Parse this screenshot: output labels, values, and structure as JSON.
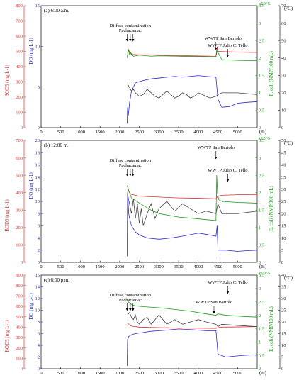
{
  "chart_data": [
    {
      "type": "line",
      "panel_label": "(a) 6:00 a.m.",
      "xlabel": "(m)",
      "x_range": [
        0,
        5500
      ],
      "x_ticks": [
        0,
        500,
        1000,
        1500,
        2000,
        2500,
        3000,
        3500,
        4000,
        4500,
        5000
      ],
      "axes": {
        "bod": {
          "label": "BOD5 (mg L-1)",
          "color": "#e03030",
          "range": [
            0,
            800
          ],
          "ticks": [
            0,
            100,
            200,
            300,
            400,
            500,
            600,
            700,
            800
          ]
        },
        "do": {
          "label": "DO (mg L-1)",
          "color": "#2b2bd0",
          "range": [
            0,
            15
          ],
          "ticks": [
            0,
            5,
            10,
            15
          ]
        },
        "ecoli": {
          "label": "E. coli (NMP/100 mL)",
          "color": "#1a9a1a",
          "range": [
            0,
            3.5
          ],
          "ticks": [
            0,
            0.5,
            1,
            1.5,
            2,
            2.5,
            3,
            3.5
          ],
          "multiplier": "x10^5"
        },
        "temp": {
          "label": "(°C)",
          "color": "#222222",
          "range": [
            0,
            70
          ],
          "ticks": [
            0,
            10,
            20,
            30,
            40,
            50,
            60,
            70
          ]
        }
      },
      "annotations": [
        {
          "text": "Diffuse contamination",
          "x": 2270
        },
        {
          "text": "Pachacamac",
          "x": 2270
        },
        {
          "text": "WWTP San Bartolo",
          "x": 4450
        },
        {
          "text": "WWTP Julio C. Tello",
          "x": 4750
        }
      ],
      "arrows_x": [
        2190,
        2270,
        2340,
        4450,
        4750
      ],
      "series": [
        {
          "axis": "bod",
          "color": "#e03030",
          "x": [
            2200,
            2230,
            2260,
            2300,
            2500,
            3000,
            3500,
            4000,
            4450,
            4480,
            4500,
            5000,
            5500
          ],
          "y": [
            490,
            510,
            490,
            480,
            478,
            475,
            473,
            470,
            468,
            530,
            500,
            495,
            493
          ]
        },
        {
          "axis": "do",
          "color": "#2b2bd0",
          "x": [
            2190,
            2200,
            2220,
            2250,
            2300,
            2400,
            2600,
            2800,
            3000,
            3200,
            3400,
            3600,
            3800,
            4000,
            4200,
            4450,
            4500,
            4600,
            4800,
            5000,
            5200,
            5500
          ],
          "y": [
            0.5,
            2.5,
            1.5,
            3,
            4.5,
            5.5,
            5.8,
            6,
            6.1,
            6.2,
            6.3,
            6.2,
            6.3,
            6.4,
            6.3,
            6.2,
            3.5,
            2.5,
            2.6,
            3,
            3.1,
            3.2
          ]
        },
        {
          "axis": "ecoli",
          "color": "#1a9a1a",
          "x": [
            2190,
            2220,
            2250,
            2280,
            2350,
            2500,
            2800,
            3000,
            3500,
            4000,
            4450,
            4480,
            4600,
            5000,
            5500
          ],
          "y": [
            2.0,
            2.25,
            2.1,
            2.15,
            2.05,
            2.08,
            2.05,
            2.06,
            2.05,
            2.04,
            2.03,
            2.2,
            1.95,
            1.93,
            1.92
          ]
        },
        {
          "axis": "temp",
          "color": "#444444",
          "x": [
            2200,
            2250,
            2300,
            2350,
            2400,
            2500,
            2600,
            2700,
            2800,
            2900,
            3000,
            3100,
            3200,
            3300,
            3400,
            3500,
            3600,
            3700,
            3800,
            3900,
            4000,
            4100,
            4200,
            4300,
            4450,
            4500,
            4600,
            5000,
            5500
          ],
          "y": [
            25,
            23,
            21,
            22,
            20,
            18,
            19,
            22,
            20,
            18,
            17,
            19,
            21,
            19,
            17,
            18,
            20,
            19,
            17,
            18,
            20,
            19,
            18,
            17,
            18,
            19,
            20,
            20,
            19
          ]
        }
      ]
    },
    {
      "type": "line",
      "panel_label": "(b) 12:00 m.",
      "xlabel": "(m)",
      "x_range": [
        0,
        5500
      ],
      "x_ticks": [
        0,
        500,
        1000,
        1500,
        2000,
        2500,
        3000,
        3500,
        4000,
        4500,
        5000
      ],
      "axes": {
        "bod": {
          "label": "BOD5 (mg L-1)",
          "color": "#e03030",
          "range": [
            0,
            700
          ],
          "ticks": [
            0,
            100,
            200,
            300,
            400,
            500,
            600,
            700
          ]
        },
        "do": {
          "label": "DO (mg L-1)",
          "color": "#2b2bd0",
          "range": [
            0,
            20
          ],
          "ticks": [
            0,
            2,
            4,
            6,
            8,
            10,
            12,
            14,
            16,
            18,
            20
          ]
        },
        "ecoli": {
          "label": "E. coli (NMP/100 mL)",
          "color": "#1a9a1a",
          "range": [
            0,
            3.5
          ],
          "ticks": [
            0,
            0.5,
            1,
            1.5,
            2,
            2.5,
            3,
            3.5
          ],
          "multiplier": "x10^5"
        },
        "temp": {
          "label": "(°C)",
          "color": "#222222",
          "range": [
            0,
            50
          ],
          "ticks": [
            0,
            5,
            10,
            15,
            20,
            25,
            30,
            35,
            40,
            45,
            50
          ]
        }
      },
      "annotations": [
        {
          "text": "Diffuse contamination",
          "x": 2270
        },
        {
          "text": "Pachacamac",
          "x": 2270
        },
        {
          "text": "WWTP San Bartolo",
          "x": 4450
        },
        {
          "text": "WWTP Julio C. Tello",
          "x": 4750
        }
      ],
      "arrows_x": [
        2190,
        2270,
        2340,
        4450,
        4750
      ],
      "series": [
        {
          "axis": "bod",
          "color": "#e03030",
          "x": [
            2200,
            2250,
            2300,
            2500,
            3000,
            3500,
            4000,
            4450,
            4500,
            4600,
            5000,
            5500
          ],
          "y": [
            420,
            400,
            390,
            380,
            375,
            370,
            368,
            365,
            380,
            385,
            388,
            390
          ]
        },
        {
          "axis": "do",
          "color": "#2b2bd0",
          "x": [
            2190,
            2200,
            2230,
            2260,
            2300,
            2400,
            2500,
            2700,
            3000,
            3300,
            3600,
            4000,
            4200,
            4450,
            4480,
            4500,
            4700,
            5000,
            5200,
            5500
          ],
          "y": [
            1,
            11.5,
            8,
            7,
            6,
            5,
            4.5,
            4,
            3.8,
            4,
            4.3,
            4.8,
            4.6,
            4.3,
            6,
            2,
            2,
            1.8,
            1.9,
            2
          ]
        },
        {
          "axis": "ecoli",
          "color": "#1a9a1a",
          "x": [
            2190,
            2220,
            2250,
            2300,
            2500,
            2800,
            3000,
            3500,
            4000,
            4450,
            4470,
            4490,
            4520,
            4600,
            5000,
            5500
          ],
          "y": [
            2.2,
            2.1,
            2.0,
            1.85,
            1.7,
            1.5,
            1.4,
            1.3,
            1.25,
            1.2,
            2.5,
            2.0,
            1.8,
            1.75,
            1.72,
            1.7
          ]
        },
        {
          "axis": "temp",
          "color": "#444444",
          "x": [
            2200,
            2250,
            2300,
            2350,
            2400,
            2450,
            2500,
            2550,
            2600,
            2700,
            2800,
            2900,
            3000,
            3200,
            3400,
            3600,
            3800,
            4000,
            4200,
            4450,
            4500,
            4600,
            5000,
            5500
          ],
          "y": [
            28,
            24,
            20,
            26,
            18,
            24,
            16,
            22,
            15,
            20,
            24,
            18,
            22,
            25,
            21,
            24,
            22,
            20,
            21,
            20,
            24,
            20,
            20,
            21
          ]
        }
      ]
    },
    {
      "type": "line",
      "panel_label": "(c) 6:00 p.m.",
      "xlabel": "(m)",
      "x_range": [
        0,
        5500
      ],
      "x_ticks": [
        0,
        500,
        1000,
        1500,
        2000,
        2500,
        3000,
        3500,
        4000,
        4500,
        5000
      ],
      "axes": {
        "bod": {
          "label": "BOD5 (mg L-1)",
          "color": "#e03030",
          "range": [
            0,
            900
          ],
          "ticks": [
            0,
            100,
            200,
            300,
            400,
            500,
            600,
            700,
            800,
            900
          ]
        },
        "do": {
          "label": "DO (mg L-1)",
          "color": "#2b2bd0",
          "range": [
            0,
            16
          ],
          "ticks": [
            0,
            2,
            4,
            6,
            8,
            10,
            12,
            14,
            16
          ]
        },
        "ecoli": {
          "label": "E. coli (NMP/100 mL)",
          "color": "#1a9a1a",
          "range": [
            0,
            3.5
          ],
          "ticks": [
            0,
            0.5,
            1,
            1.5,
            2,
            2.5,
            3,
            3.5
          ],
          "multiplier": "x10^5"
        },
        "temp": {
          "label": "(°C)",
          "color": "#222222",
          "range": [
            0,
            40
          ],
          "ticks": [
            0,
            5,
            10,
            15,
            20,
            25,
            30,
            35,
            40
          ]
        }
      },
      "annotations": [
        {
          "text": "Diffuse contamination",
          "x": 2270
        },
        {
          "text": "Pachacamac",
          "x": 2270
        },
        {
          "text": "WWTP Julio C. Tello",
          "x": 4750
        },
        {
          "text": "WWTP San Bartolo",
          "x": 4400
        }
      ],
      "arrows_x": [
        2190,
        2270,
        2340,
        4400,
        4750
      ],
      "series": [
        {
          "axis": "bod",
          "color": "#e03030",
          "x": [
            2200,
            2250,
            2300,
            2500,
            3000,
            3500,
            4000,
            4450,
            4500,
            4600,
            5000,
            5500
          ],
          "y": [
            440,
            420,
            410,
            400,
            395,
            392,
            390,
            388,
            395,
            400,
            402,
            405
          ]
        },
        {
          "axis": "do",
          "color": "#2b2bd0",
          "x": [
            2190,
            2200,
            2230,
            2300,
            2400,
            2600,
            2800,
            3000,
            3200,
            3500,
            3800,
            4000,
            4200,
            4450,
            4500,
            4700,
            5000,
            5200,
            5500
          ],
          "y": [
            0.5,
            5,
            5.5,
            5.8,
            6,
            6.2,
            6.4,
            6.5,
            6.6,
            6.8,
            6.7,
            6.6,
            6.5,
            6.5,
            2.5,
            2,
            2.2,
            2.3,
            2.4
          ]
        },
        {
          "axis": "ecoli",
          "color": "#1a9a1a",
          "x": [
            2190,
            2220,
            2260,
            2300,
            2400,
            2600,
            2800,
            3000,
            3200,
            3500,
            3800,
            4000,
            4200,
            4450,
            4500,
            4700,
            5000,
            5200,
            5500
          ],
          "y": [
            2.55,
            2.5,
            2.45,
            2.4,
            2.35,
            2.32,
            2.3,
            2.28,
            2.25,
            2.2,
            2.15,
            2.1,
            2.05,
            2.0,
            2.05,
            2.0,
            1.97,
            1.95,
            1.93
          ]
        },
        {
          "axis": "temp",
          "color": "#444444",
          "x": [
            2200,
            2250,
            2300,
            2350,
            2400,
            2450,
            2500,
            2600,
            2700,
            2800,
            2900,
            3000,
            3200,
            3400,
            3600,
            3800,
            4000,
            4200,
            4450,
            4500,
            4600,
            5000,
            5500
          ],
          "y": [
            23,
            24,
            22,
            21,
            23,
            20,
            19,
            21,
            22,
            19,
            21,
            23,
            19,
            21,
            19,
            20,
            21,
            20,
            19,
            18,
            19,
            18.5,
            18
          ]
        }
      ]
    }
  ]
}
